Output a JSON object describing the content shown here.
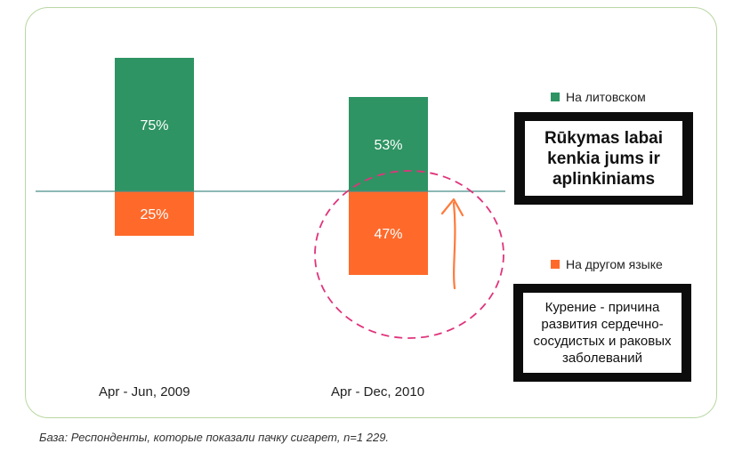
{
  "chart_data": {
    "type": "bar",
    "stacked": true,
    "categories": [
      "Apr - Jun, 2009",
      "Apr - Dec, 2010"
    ],
    "series": [
      {
        "name": "На литовском",
        "values": [
          75,
          53
        ],
        "labels": [
          "75%",
          "53%"
        ],
        "color": "#2e9463"
      },
      {
        "name": "На другом языке",
        "values": [
          25,
          47
        ],
        "labels": [
          "25%",
          "47%"
        ],
        "color": "#ff6a2b"
      }
    ],
    "unit": "%",
    "legend_position": "right",
    "annotations": {
      "highlight_circle": "dashed magenta circle around 47%",
      "arrow_color": "#ff7a3c",
      "circle_color": "#e0347c"
    }
  },
  "warnings": {
    "lithuanian": "Rūkymas labai kenkia jums ir aplinkiniams",
    "russian": "Курение - причина развития сердечно-сосудистых и раковых заболеваний"
  },
  "footnote": "База: Респонденты, которые показали пачку сигарет, n=1 229."
}
